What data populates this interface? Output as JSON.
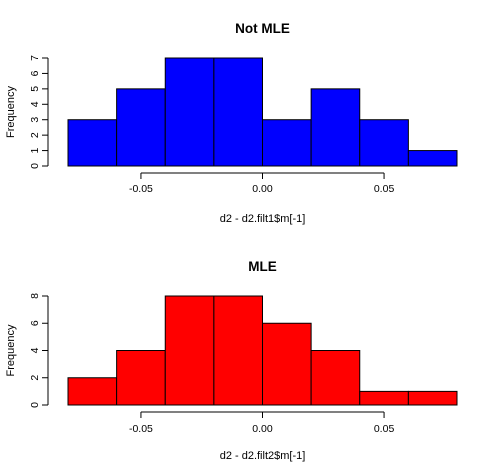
{
  "chart_data": [
    {
      "type": "bar",
      "subtype": "histogram",
      "title": "Not MLE",
      "xlabel": "d2 - d2.filt1$m[-1]",
      "ylabel": "Frequency",
      "bin_edges": [
        -0.08,
        -0.06,
        -0.04,
        -0.02,
        0.0,
        0.02,
        0.04,
        0.06,
        0.08
      ],
      "values": [
        3,
        5,
        7,
        7,
        3,
        5,
        3,
        1
      ],
      "xlim": [
        -0.08,
        0.08
      ],
      "ylim": [
        0,
        7
      ],
      "x_ticks": [
        -0.05,
        0.0,
        0.05
      ],
      "x_tick_labels": [
        "-0.05",
        "0.00",
        "0.05"
      ],
      "y_ticks": [
        0,
        1,
        2,
        3,
        4,
        5,
        6,
        7
      ],
      "y_tick_labels": [
        "0",
        "1",
        "2",
        "3",
        "4",
        "5",
        "6",
        "7"
      ],
      "bar_color": "#0000ff",
      "grid": false
    },
    {
      "type": "bar",
      "subtype": "histogram",
      "title": "MLE",
      "xlabel": "d2 - d2.filt2$m[-1]",
      "ylabel": "Frequency",
      "bin_edges": [
        -0.08,
        -0.06,
        -0.04,
        -0.02,
        0.0,
        0.02,
        0.04,
        0.06,
        0.08
      ],
      "values": [
        2,
        4,
        8,
        8,
        6,
        4,
        1,
        1
      ],
      "xlim": [
        -0.08,
        0.08
      ],
      "ylim": [
        0,
        8
      ],
      "x_ticks": [
        -0.05,
        0.0,
        0.05
      ],
      "x_tick_labels": [
        "-0.05",
        "0.00",
        "0.05"
      ],
      "y_ticks": [
        0,
        2,
        4,
        6,
        8
      ],
      "y_tick_labels": [
        "0",
        "2",
        "4",
        "6",
        "8"
      ],
      "bar_color": "#ff0000",
      "grid": false
    }
  ]
}
